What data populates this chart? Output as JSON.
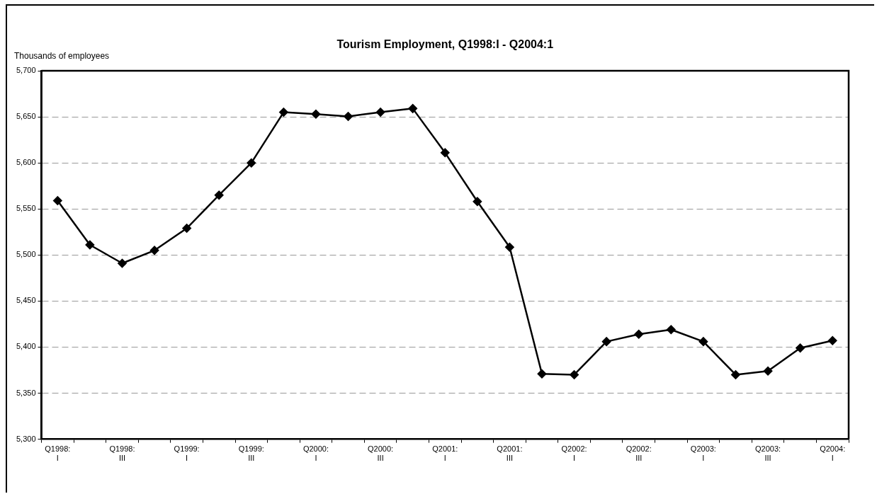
{
  "chart_data": {
    "type": "line",
    "title": "Tourism Employment, Q1998:I - Q2004:1",
    "ylabel": "Thousands of employees",
    "categories": [
      "Q1998:\nI",
      null,
      "Q1998:\nIII",
      null,
      "Q1999:\nI",
      null,
      "Q1999:\nIII",
      null,
      "Q2000:\nI",
      null,
      "Q2000:\nIII",
      null,
      "Q2001:\nI",
      null,
      "Q2001:\nIII",
      null,
      "Q2002:\nI",
      null,
      "Q2002:\nIII",
      null,
      "Q2003:\nI",
      null,
      "Q2003:\nIII",
      null,
      "Q2004:\nI"
    ],
    "series": [
      {
        "color": "#000000",
        "values": [
          5559,
          5511,
          5491,
          5505,
          5529,
          5565,
          5600,
          5655,
          5653,
          5650.5,
          5655,
          5659,
          5611,
          5558,
          5508.5,
          5371,
          5370,
          5406,
          5414,
          5419,
          5406,
          5370,
          5374,
          5399,
          5407
        ]
      }
    ],
    "ylim": [
      5300,
      5700
    ],
    "yticks": [
      {
        "value": 5300,
        "label": "5,300"
      },
      {
        "value": 5350,
        "label": "5,350"
      },
      {
        "value": 5400,
        "label": "5,400"
      },
      {
        "value": 5450,
        "label": "5,450"
      },
      {
        "value": 5500,
        "label": "5,500"
      },
      {
        "value": 5550,
        "label": "5,550"
      },
      {
        "value": 5600,
        "label": "5,600"
      },
      {
        "value": 5650,
        "label": "5,650"
      },
      {
        "value": 5700,
        "label": "5,700"
      }
    ],
    "grid": "y",
    "legend": false,
    "marker": "diamond",
    "line_style": "solid"
  }
}
